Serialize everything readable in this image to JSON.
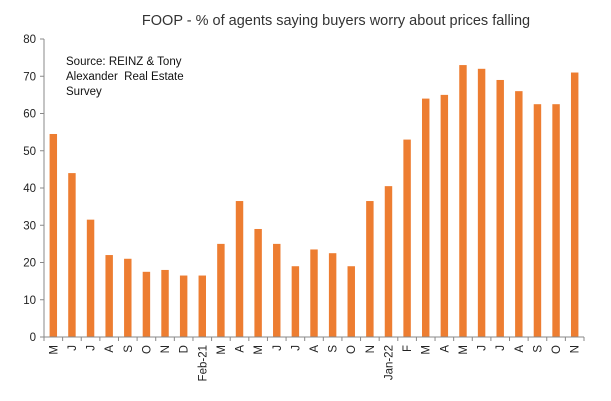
{
  "chart_data": {
    "type": "bar",
    "title": "FOOP - % of agents saying buyers worry about prices falling",
    "annotation": [
      "Source: REINZ & Tony",
      "Alexander  Real Estate",
      "Survey"
    ],
    "xlabel": "",
    "ylabel": "",
    "ylim": [
      0,
      80
    ],
    "yticks": [
      0,
      10,
      20,
      30,
      40,
      50,
      60,
      70,
      80
    ],
    "grid": false,
    "bar_color": "#ED7D31",
    "categories": [
      "M",
      "J",
      "J",
      "A",
      "S",
      "O",
      "N",
      "D",
      "Feb-21",
      "M",
      "A",
      "M",
      "J",
      "J",
      "A",
      "S",
      "O",
      "N",
      "Jan-22",
      "F",
      "M",
      "A",
      "M",
      "J",
      "J",
      "A",
      "S",
      "O",
      "N"
    ],
    "values": [
      54.5,
      44,
      31.5,
      22,
      21,
      17.5,
      18,
      16.5,
      16.5,
      25,
      36.5,
      29,
      25,
      19,
      23.5,
      22.5,
      19,
      36.5,
      40.5,
      53,
      64,
      65,
      73,
      72,
      69,
      66,
      62.5,
      62.5,
      71
    ]
  }
}
